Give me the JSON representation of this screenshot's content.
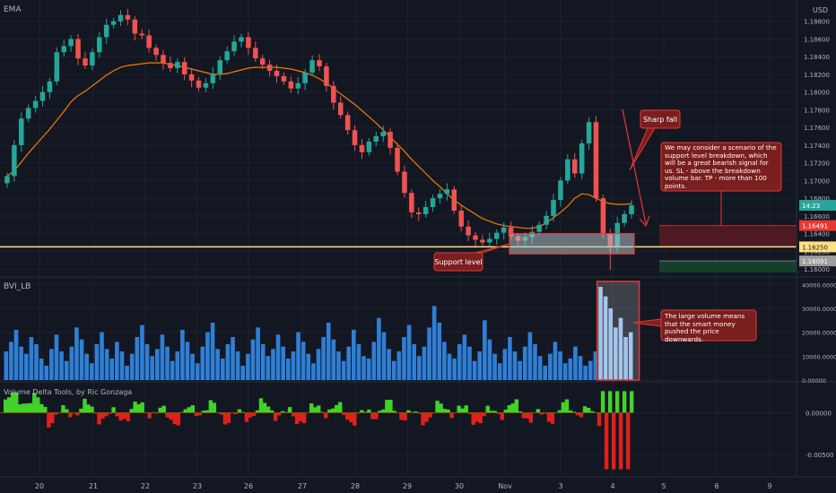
{
  "header": {
    "indicator_label": "EMA",
    "currency_label": "USD"
  },
  "colors": {
    "background": "#131722",
    "grid": "#1e2230",
    "up_candle": "#26a69a",
    "down_candle": "#ef5350",
    "ema": "#f57c00",
    "support_line": "#ffe082",
    "annotation_fill": "#7b1e1e",
    "annotation_border": "#e53935",
    "volume_bar": "#2f7fd6",
    "delta_positive": "#43d12b",
    "delta_negative": "#e0201b",
    "stop_zone": "#5a1a22",
    "target_zone": "#17432a",
    "axis_text": "#b2b5be"
  },
  "price_axis": {
    "ticks": [
      "1.18800",
      "1.18600",
      "1.18400",
      "1.18200",
      "1.18000",
      "1.17800",
      "1.17600",
      "1.17400",
      "1.17200",
      "1.17000",
      "1.16800",
      "1.16600",
      "1.16400",
      "1.16200",
      "1.16000"
    ],
    "badges": [
      {
        "label": "14:23",
        "value": 1.1672,
        "color": "#26a69a"
      },
      {
        "label": "1.16491",
        "value": 1.16491,
        "color": "#e53935"
      },
      {
        "label": "1.16250",
        "value": 1.1625,
        "color": "#ffe082"
      },
      {
        "label": "1.16091",
        "value": 1.16091,
        "color": "#9e9e9e"
      }
    ]
  },
  "volume_pane": {
    "title": "BVI_LB",
    "ticks": [
      "40000.00000",
      "30000.00000",
      "20000.00000",
      "10000.00000",
      "0.00000"
    ]
  },
  "delta_pane": {
    "title": "Volume Delta Tools, by Ric Gonzaga",
    "ticks": [
      "0.00000",
      "-0.00500"
    ]
  },
  "time_axis": {
    "labels": [
      "20",
      "21",
      "22",
      "23",
      "26",
      "27",
      "28",
      "29",
      "30",
      "Nov",
      "3",
      "4",
      "5",
      "6",
      "9"
    ]
  },
  "annotations": {
    "sharp_fall": "Sharp fall",
    "scenario": "We may consider a scenario of the support level breakdown, which will be a great bearish signal for us. SL - above the breakdown volume bar. TP - more than 100 points.",
    "support_level": "Support level",
    "volume_note": "The large volume means that the smart money pushed the price downwards."
  },
  "chart_data": [
    {
      "type": "candlestick",
      "title": "EMA",
      "x_labels": [
        "20",
        "21",
        "22",
        "23",
        "26",
        "27",
        "28",
        "29",
        "30",
        "Nov",
        "3",
        "4",
        "5",
        "6",
        "9"
      ],
      "close": [
        1.1705,
        1.174,
        1.177,
        1.1782,
        1.179,
        1.18,
        1.1812,
        1.1845,
        1.1852,
        1.186,
        1.1838,
        1.183,
        1.1845,
        1.1862,
        1.1876,
        1.188,
        1.1887,
        1.1882,
        1.1866,
        1.1864,
        1.185,
        1.1842,
        1.1833,
        1.1827,
        1.1834,
        1.182,
        1.1813,
        1.1805,
        1.181,
        1.1821,
        1.1836,
        1.1846,
        1.1857,
        1.1862,
        1.185,
        1.1838,
        1.1831,
        1.1824,
        1.1818,
        1.1812,
        1.1804,
        1.181,
        1.1822,
        1.1836,
        1.1829,
        1.1807,
        1.1788,
        1.1774,
        1.1757,
        1.174,
        1.1732,
        1.1744,
        1.175,
        1.1755,
        1.1737,
        1.171,
        1.1686,
        1.1664,
        1.1662,
        1.167,
        1.168,
        1.1685,
        1.169,
        1.1666,
        1.1648,
        1.1638,
        1.1633,
        1.163,
        1.1634,
        1.1641,
        1.1647,
        1.1637,
        1.1632,
        1.1636,
        1.1642,
        1.165,
        1.166,
        1.1678,
        1.17,
        1.1724,
        1.1708,
        1.1742,
        1.1766,
        1.168,
        1.164,
        1.1626,
        1.1652,
        1.1662,
        1.1672
      ],
      "ema": [
        1.1705,
        1.1711,
        1.1721,
        1.1731,
        1.174,
        1.1749,
        1.1758,
        1.1768,
        1.1778,
        1.1789,
        1.1796,
        1.1801,
        1.1807,
        1.1813,
        1.1819,
        1.1824,
        1.1828,
        1.183,
        1.1831,
        1.1832,
        1.1833,
        1.1833,
        1.1833,
        1.1831,
        1.183,
        1.1828,
        1.1826,
        1.1824,
        1.1822,
        1.182,
        1.182,
        1.1821,
        1.1823,
        1.1825,
        1.1827,
        1.1828,
        1.1828,
        1.1828,
        1.1828,
        1.1827,
        1.1826,
        1.1824,
        1.1822,
        1.1819,
        1.1815,
        1.181,
        1.1804,
        1.1798,
        1.1792,
        1.1786,
        1.1779,
        1.1772,
        1.1765,
        1.1757,
        1.1749,
        1.1741,
        1.1733,
        1.1724,
        1.1716,
        1.1708,
        1.17,
        1.1693,
        1.1685,
        1.1678,
        1.1672,
        1.1667,
        1.1662,
        1.1657,
        1.1654,
        1.1651,
        1.1649,
        1.1648,
        1.1647,
        1.1646,
        1.1646,
        1.1648,
        1.1652,
        1.1658,
        1.1664,
        1.1671,
        1.168,
        1.1685,
        1.1684,
        1.168,
        1.1676,
        1.1674,
        1.1673,
        1.1673,
        1.1674
      ],
      "ylim": [
        1.1593,
        1.19
      ],
      "support_level": 1.1625,
      "stop_zone": [
        1.1625,
        1.16491
      ],
      "target_zone": [
        1.1596,
        1.16091
      ]
    },
    {
      "type": "bar",
      "title": "BVI_LB",
      "ylim": [
        0,
        42000
      ],
      "highlight_range": [
        118,
        125
      ],
      "values": [
        12000,
        16000,
        21000,
        14000,
        11000,
        18000,
        15000,
        9000,
        6000,
        13000,
        19000,
        12000,
        8000,
        14000,
        22000,
        17000,
        11000,
        7000,
        15000,
        20000,
        13000,
        9000,
        16000,
        12000,
        6000,
        11000,
        18000,
        23000,
        15000,
        10000,
        13000,
        19000,
        14000,
        8000,
        12000,
        21000,
        16000,
        11000,
        7000,
        14000,
        20000,
        24000,
        13000,
        9000,
        15000,
        18000,
        12000,
        6000,
        11000,
        17000,
        22000,
        15000,
        10000,
        13000,
        19000,
        14000,
        9000,
        12000,
        20000,
        16000,
        11000,
        7000,
        13000,
        18000,
        24000,
        17000,
        12000,
        8000,
        14000,
        21000,
        15000,
        10000,
        9000,
        16000,
        26000,
        20000,
        13000,
        8000,
        12000,
        18000,
        23000,
        15000,
        10000,
        14000,
        22000,
        31000,
        24000,
        16000,
        11000,
        9000,
        15000,
        19000,
        14000,
        8000,
        12000,
        25000,
        17000,
        11000,
        7000,
        13000,
        18000,
        12000,
        8000,
        14000,
        20000,
        15000,
        10000,
        6000,
        11000,
        16000,
        12000,
        7000,
        9000,
        14000,
        10000,
        6000,
        8000,
        12000,
        39000,
        35000,
        30000,
        22000,
        26000,
        18000,
        20000
      ],
      "unit_samples": 125
    },
    {
      "type": "area",
      "title": "Volume Delta Tools, by Ric Gonzaga",
      "ylim": [
        -0.0075,
        0.0035
      ]
    }
  ]
}
